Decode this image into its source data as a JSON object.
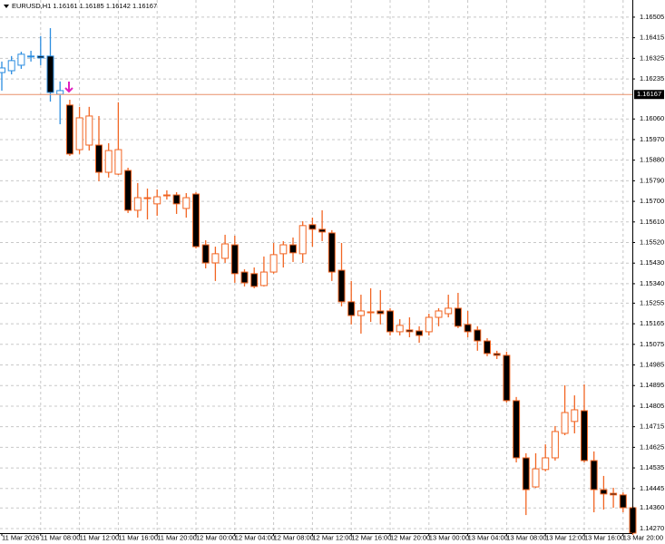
{
  "chart_data": {
    "type": "candlestick",
    "title": "EURUSD,H1  1.16161 1.16185 1.16142 1.16167",
    "categories": [
      "11 Mar 2026",
      null,
      null,
      null,
      "11 Mar 08:00",
      null,
      null,
      null,
      "11 Mar 12:00",
      null,
      null,
      null,
      "11 Mar 16:00",
      null,
      null,
      null,
      "11 Mar 20:00",
      null,
      null,
      null,
      "12 Mar 00:00",
      null,
      null,
      null,
      "12 Mar 04:00",
      null,
      null,
      null,
      "12 Mar 08:00",
      null,
      null,
      null,
      "12 Mar 12:00",
      null,
      null,
      null,
      "12 Mar 16:00",
      null,
      null,
      null,
      "12 Mar 20:00",
      null,
      null,
      null,
      "13 Mar 00:00",
      null,
      null,
      null,
      "13 Mar 04:00",
      null,
      null,
      null,
      "13 Mar 08:00",
      null,
      null,
      null,
      "13 Mar 12:00",
      null,
      null,
      null,
      "13 Mar 16:00",
      null,
      null,
      null,
      "13 Mar 20:00",
      null
    ],
    "series": [
      {
        "color": "#2b8de0",
        "open": [
          1.16263,
          1.16271,
          1.16295,
          1.16331,
          1.16335,
          1.16335,
          1.16168,
          null,
          null,
          null,
          null,
          null,
          null,
          null,
          null,
          null,
          null,
          null,
          null,
          null,
          null,
          null,
          null,
          null,
          null,
          null,
          null,
          null,
          null,
          null,
          null,
          null,
          null,
          null,
          null,
          null,
          null,
          null,
          null,
          null,
          null,
          null,
          null,
          null,
          null,
          null,
          null,
          null,
          null,
          null,
          null,
          null,
          null,
          null,
          null,
          null,
          null,
          null,
          null,
          null,
          null,
          null,
          null,
          null,
          null,
          null
        ],
        "high": [
          1.16311,
          1.16335,
          1.16354,
          1.16358,
          1.16422,
          1.16457,
          1.16224,
          null,
          null,
          null,
          null,
          null,
          null,
          null,
          null,
          null,
          null,
          null,
          null,
          null,
          null,
          null,
          null,
          null,
          null,
          null,
          null,
          null,
          null,
          null,
          null,
          null,
          null,
          null,
          null,
          null,
          null,
          null,
          null,
          null,
          null,
          null,
          null,
          null,
          null,
          null,
          null,
          null,
          null,
          null,
          null,
          null,
          null,
          null,
          null,
          null,
          null,
          null,
          null,
          null,
          null,
          null,
          null,
          null,
          null,
          null
        ],
        "low": [
          1.16184,
          1.16255,
          1.16279,
          1.16311,
          1.16295,
          1.16136,
          1.16037,
          null,
          null,
          null,
          null,
          null,
          null,
          null,
          null,
          null,
          null,
          null,
          null,
          null,
          null,
          null,
          null,
          null,
          null,
          null,
          null,
          null,
          null,
          null,
          null,
          null,
          null,
          null,
          null,
          null,
          null,
          null,
          null,
          null,
          null,
          null,
          null,
          null,
          null,
          null,
          null,
          null,
          null,
          null,
          null,
          null,
          null,
          null,
          null,
          null,
          null,
          null,
          null,
          null,
          null,
          null,
          null,
          null,
          null,
          null
        ],
        "close": [
          1.16283,
          1.16315,
          1.16343,
          1.16335,
          1.16327,
          1.16176,
          1.16184,
          null,
          null,
          null,
          null,
          null,
          null,
          null,
          null,
          null,
          null,
          null,
          null,
          null,
          null,
          null,
          null,
          null,
          null,
          null,
          null,
          null,
          null,
          null,
          null,
          null,
          null,
          null,
          null,
          null,
          null,
          null,
          null,
          null,
          null,
          null,
          null,
          null,
          null,
          null,
          null,
          null,
          null,
          null,
          null,
          null,
          null,
          null,
          null,
          null,
          null,
          null,
          null,
          null,
          null,
          null,
          null,
          null,
          null,
          null
        ]
      },
      {
        "color": "#f26522",
        "open": [
          null,
          null,
          null,
          null,
          null,
          null,
          null,
          1.16121,
          1.15926,
          1.15946,
          1.15946,
          1.15827,
          1.15819,
          1.15835,
          1.15661,
          1.15716,
          1.15689,
          1.15728,
          1.15728,
          1.15669,
          1.15732,
          1.1551,
          1.15431,
          1.15451,
          1.1551,
          1.15391,
          1.15384,
          1.15332,
          1.15391,
          1.15471,
          1.1551,
          1.15471,
          1.15598,
          1.15578,
          1.15562,
          1.15399,
          1.15261,
          1.15201,
          1.15217,
          1.15221,
          1.15221,
          1.1513,
          1.15138,
          1.15134,
          1.1513,
          1.15193,
          1.15209,
          1.15233,
          1.15162,
          1.15138,
          1.1509,
          1.15035,
          1.15027,
          1.14829,
          1.14579,
          1.14452,
          1.14528,
          1.14579,
          1.14686,
          1.14738,
          1.14785,
          1.14567,
          1.1444,
          1.14424,
          1.14417,
          1.14361
        ],
        "high": [
          null,
          null,
          null,
          null,
          null,
          null,
          null,
          1.16144,
          1.16113,
          1.16113,
          1.16073,
          1.15954,
          1.16133,
          1.15847,
          1.1578,
          1.15756,
          1.15752,
          1.15748,
          1.1574,
          1.15736,
          1.1574,
          1.1553,
          1.15502,
          1.15554,
          1.1555,
          1.15403,
          1.15411,
          1.15459,
          1.15518,
          1.15526,
          1.15542,
          1.15613,
          1.15629,
          1.15661,
          1.15574,
          1.15518,
          1.15352,
          1.15292,
          1.1532,
          1.15312,
          1.15233,
          1.15185,
          1.15193,
          1.15154,
          1.15209,
          1.15233,
          1.15292,
          1.153,
          1.15221,
          1.15154,
          1.15102,
          1.15047,
          1.15043,
          1.14845,
          1.14599,
          1.14599,
          1.14638,
          1.14718,
          1.14896,
          1.14852,
          1.149,
          1.14607,
          1.145,
          1.14448,
          1.14428,
          1.14369
        ],
        "low": [
          null,
          null,
          null,
          null,
          null,
          null,
          null,
          1.15899,
          1.15907,
          1.15922,
          1.15788,
          1.15804,
          1.15815,
          1.15649,
          1.15629,
          1.15621,
          1.15637,
          1.15708,
          1.15645,
          1.15629,
          1.15494,
          1.15407,
          1.15352,
          1.15431,
          1.15344,
          1.15328,
          1.1532,
          1.15328,
          1.15384,
          1.15411,
          1.15435,
          1.15431,
          1.15502,
          1.15526,
          1.15352,
          1.15241,
          1.15162,
          1.15122,
          1.15173,
          1.15162,
          1.15114,
          1.15114,
          1.15106,
          1.15082,
          1.15114,
          1.15154,
          1.15193,
          1.15146,
          1.15106,
          1.15047,
          1.15023,
          1.15011,
          1.14821,
          1.14559,
          1.14329,
          1.14448,
          1.1452,
          1.14567,
          1.14678,
          1.14686,
          1.14559,
          1.14341,
          1.14353,
          1.14361,
          1.14341,
          1.14242
        ],
        "close": [
          null,
          null,
          null,
          null,
          null,
          null,
          null,
          1.15907,
          1.16065,
          1.16073,
          1.15827,
          1.15922,
          1.15926,
          1.15661,
          1.15716,
          1.15712,
          1.1572,
          1.15724,
          1.15689,
          1.15716,
          1.15502,
          1.15431,
          1.15471,
          1.15514,
          1.15384,
          1.15344,
          1.15328,
          1.15391,
          1.15467,
          1.1551,
          1.15475,
          1.15594,
          1.15578,
          1.15566,
          1.15391,
          1.15261,
          1.15201,
          1.15221,
          1.15213,
          1.15209,
          1.1513,
          1.15158,
          1.1513,
          1.15114,
          1.15193,
          1.15221,
          1.15233,
          1.15154,
          1.1513,
          1.1509,
          1.15035,
          1.15027,
          1.14829,
          1.14579,
          1.1444,
          1.14531,
          1.14579,
          1.14694,
          1.14777,
          1.14789,
          1.14567,
          1.1444,
          1.14421,
          1.14417,
          1.14361,
          1.1425
        ]
      }
    ],
    "ylim": [
      1.1425,
      1.1658
    ],
    "yticks": [
      1.16505,
      1.16415,
      1.16325,
      1.16235,
      {
        "value": 1.1606,
        "label": "1.16060"
      },
      {
        "value": 1.1597,
        "label": "1.15970"
      },
      {
        "value": 1.1588,
        "label": "1.15880"
      },
      {
        "value": 1.1579,
        "label": "1.15790"
      },
      {
        "value": 1.157,
        "label": "1.15700"
      },
      {
        "value": 1.1561,
        "label": "1.15610"
      },
      {
        "value": 1.1552,
        "label": "1.15520"
      },
      {
        "value": 1.1543,
        "label": "1.15430"
      },
      {
        "value": 1.1534,
        "label": "1.15340"
      },
      1.15255,
      1.15165,
      1.15075,
      1.14985,
      1.14895,
      1.14805,
      1.14715,
      1.14625,
      1.14535,
      1.14445,
      {
        "value": 1.1436,
        "label": "1.14360"
      },
      {
        "value": 1.1427,
        "label": "1.14270"
      }
    ],
    "grid": true,
    "up_body_color": "#ffffff",
    "down_body_color": "#000000",
    "price_line": {
      "value": 1.16167,
      "color": "#e8916a"
    }
  }
}
